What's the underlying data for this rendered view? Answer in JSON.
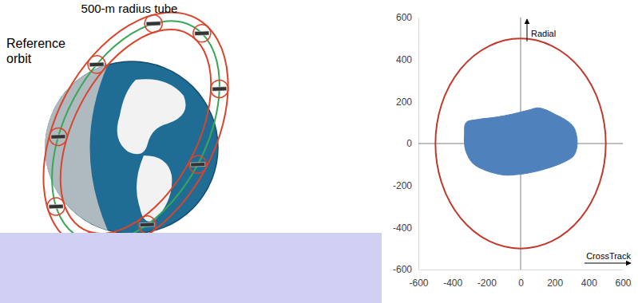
{
  "chart_data": {
    "type": "scatter",
    "x_label": "CrossTrack",
    "y_label": "Radial",
    "xlim": [
      -600,
      600
    ],
    "ylim": [
      -600,
      600
    ],
    "xticks": [
      -600,
      -400,
      -200,
      0,
      200,
      400,
      600
    ],
    "yticks": [
      -600,
      -400,
      -200,
      0,
      200,
      400,
      600
    ],
    "circle": {
      "radius": 500,
      "color": "#c0392b"
    },
    "series": [
      {
        "color": "#4f81bd",
        "x": [
          -330,
          -320,
          -250,
          -150,
          -50,
          50,
          100,
          150,
          200,
          260,
          310,
          330,
          330,
          310,
          250,
          150,
          50,
          -50,
          -100,
          -200,
          -280,
          -320,
          -330
        ],
        "y": [
          40,
          100,
          115,
          125,
          140,
          160,
          170,
          160,
          140,
          115,
          80,
          30,
          -20,
          -60,
          -90,
          -120,
          -140,
          -150,
          -150,
          -130,
          -95,
          -40,
          0
        ]
      }
    ]
  },
  "diagram": {
    "tube_label": "500-m radius tube",
    "orbit_label": "Reference orbit"
  }
}
